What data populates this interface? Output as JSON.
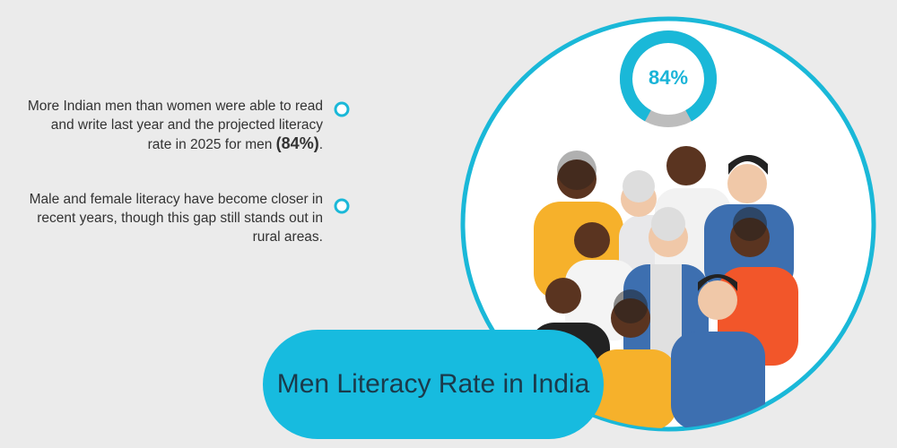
{
  "notes": [
    {
      "text": "More Indian men than women were able to read and write last year and the projected literacy rate in 2025 for men",
      "highlight": "(84%)",
      "end": "."
    },
    {
      "text": "Male and female literacy have become closer in recent years, though this gap still stands out in rural areas."
    }
  ],
  "donut": {
    "value": 84,
    "label": "84%",
    "max": 100
  },
  "title": "Men Literacy Rate in India"
}
